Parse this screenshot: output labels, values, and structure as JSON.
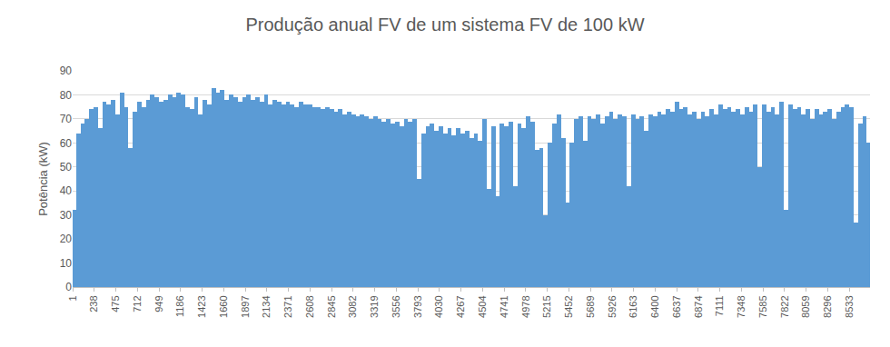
{
  "chart_data": {
    "type": "bar",
    "title": "Produção anual FV de um sistema FV de 100 kW",
    "y_label": "Potência (kW)",
    "color": "#5b9bd5",
    "grid": true,
    "xlim": [
      0,
      8760
    ],
    "xticks": [
      1,
      238,
      475,
      712,
      949,
      1186,
      1423,
      1660,
      1897,
      2134,
      2371,
      2608,
      2845,
      3082,
      3319,
      3556,
      3793,
      4030,
      4267,
      4504,
      4741,
      4978,
      5215,
      5452,
      5689,
      5926,
      6163,
      6400,
      6637,
      6874,
      7111,
      7348,
      7585,
      7822,
      8059,
      8296,
      8533
    ],
    "ylim": [
      0,
      90
    ],
    "yticks": [
      0,
      10,
      20,
      30,
      40,
      50,
      60,
      70,
      80,
      90
    ],
    "x": [
      13,
      61,
      109,
      157,
      205,
      253,
      301,
      349,
      397,
      445,
      493,
      541,
      589,
      637,
      685,
      733,
      781,
      829,
      877,
      925,
      973,
      1021,
      1069,
      1117,
      1165,
      1213,
      1261,
      1309,
      1357,
      1405,
      1453,
      1501,
      1549,
      1597,
      1645,
      1693,
      1741,
      1789,
      1837,
      1885,
      1933,
      1981,
      2029,
      2077,
      2125,
      2173,
      2221,
      2269,
      2317,
      2365,
      2413,
      2461,
      2509,
      2557,
      2605,
      2653,
      2701,
      2749,
      2797,
      2845,
      2893,
      2941,
      2989,
      3037,
      3085,
      3133,
      3181,
      3229,
      3277,
      3325,
      3373,
      3421,
      3469,
      3517,
      3565,
      3613,
      3661,
      3709,
      3757,
      3805,
      3853,
      3901,
      3949,
      3997,
      4045,
      4093,
      4141,
      4189,
      4237,
      4285,
      4333,
      4381,
      4429,
      4477,
      4525,
      4573,
      4621,
      4669,
      4717,
      4765,
      4813,
      4861,
      4909,
      4957,
      5005,
      5053,
      5101,
      5149,
      5197,
      5245,
      5293,
      5341,
      5389,
      5437,
      5485,
      5533,
      5581,
      5629,
      5677,
      5725,
      5773,
      5821,
      5869,
      5917,
      5965,
      6013,
      6061,
      6109,
      6157,
      6205,
      6253,
      6301,
      6349,
      6397,
      6445,
      6493,
      6541,
      6589,
      6637,
      6685,
      6733,
      6781,
      6829,
      6877,
      6925,
      6973,
      7021,
      7069,
      7117,
      7165,
      7213,
      7261,
      7309,
      7357,
      7405,
      7453,
      7501,
      7549,
      7597,
      7645,
      7693,
      7741,
      7789,
      7837,
      7885,
      7933,
      7981,
      8029,
      8077,
      8125,
      8173,
      8221,
      8269,
      8317,
      8365,
      8413,
      8461,
      8509,
      8557,
      8605,
      8653,
      8701,
      8749
    ],
    "values": [
      32,
      64,
      68,
      70,
      74,
      75,
      66,
      77,
      76,
      78,
      72,
      81,
      75,
      58,
      73,
      77,
      75,
      78,
      80,
      79,
      77,
      78,
      80,
      79,
      81,
      80,
      75,
      74,
      79,
      72,
      78,
      76,
      83,
      81,
      82,
      78,
      80,
      79,
      77,
      79,
      80,
      78,
      79,
      77,
      80,
      76,
      78,
      77,
      76,
      77,
      76,
      75,
      77,
      76,
      76,
      75,
      75,
      74,
      75,
      74,
      73,
      74,
      72,
      73,
      72,
      71,
      72,
      71,
      70,
      71,
      70,
      69,
      70,
      68,
      69,
      67,
      70,
      69,
      70,
      45,
      64,
      67,
      68,
      65,
      67,
      64,
      66,
      63,
      66,
      64,
      65,
      62,
      64,
      61,
      70,
      41,
      67,
      38,
      68,
      67,
      69,
      42,
      68,
      66,
      71,
      69,
      57,
      58,
      30,
      60,
      68,
      72,
      62,
      35,
      60,
      70,
      71,
      61,
      71,
      70,
      72,
      68,
      71,
      73,
      70,
      72,
      71,
      42,
      72,
      70,
      71,
      65,
      72,
      71,
      73,
      72,
      74,
      73,
      77,
      74,
      75,
      72,
      73,
      70,
      73,
      71,
      74,
      72,
      76,
      74,
      75,
      73,
      74,
      72,
      75,
      73,
      76,
      50,
      76,
      73,
      75,
      72,
      77,
      32,
      76,
      74,
      75,
      72,
      74,
      70,
      74,
      72,
      73,
      74,
      70,
      73,
      75,
      76,
      75,
      27,
      68,
      71,
      60
    ]
  }
}
